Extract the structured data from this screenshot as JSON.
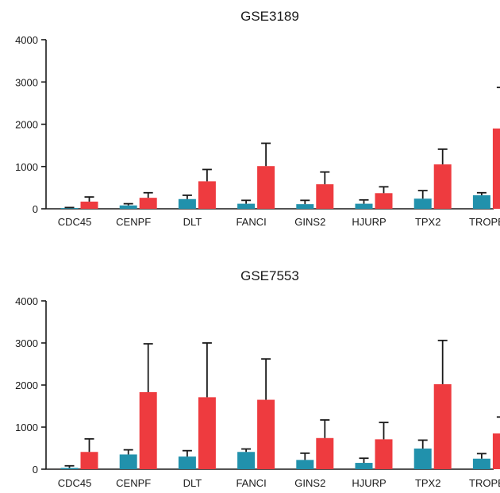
{
  "colors": {
    "normal": "#2191AC",
    "tumor": "#EE3B3F",
    "axis": "#1A1A1A"
  },
  "chart_data": [
    {
      "type": "bar",
      "title": "GSE3189",
      "xlabel": "",
      "ylabel": "",
      "ylim": [
        0,
        4000
      ],
      "yticks": [
        0,
        1000,
        2000,
        3000,
        4000
      ],
      "grid": false,
      "categories": [
        "CDC45",
        "CENPF",
        "DLT",
        "FANCI",
        "GINS2",
        "HJURP",
        "TPX2",
        "TROPB"
      ],
      "series": [
        {
          "values": [
            20,
            80,
            230,
            120,
            110,
            120,
            240,
            320
          ],
          "error": [
            10,
            40,
            90,
            80,
            90,
            90,
            190,
            60
          ],
          "color": "#2191AC"
        },
        {
          "values": [
            170,
            260,
            650,
            1010,
            580,
            370,
            1050,
            1900
          ],
          "error": [
            110,
            120,
            280,
            540,
            290,
            150,
            360,
            970
          ],
          "color": "#EE3B3F"
        }
      ]
    },
    {
      "type": "bar",
      "title": "GSE7553",
      "xlabel": "",
      "ylabel": "",
      "ylim": [
        0,
        4000
      ],
      "yticks": [
        0,
        1000,
        2000,
        3000,
        4000
      ],
      "grid": false,
      "categories": [
        "CDC45",
        "CENPF",
        "DLT",
        "FANCI",
        "GINS2",
        "HJURP",
        "TPX2",
        "TROPB"
      ],
      "series": [
        {
          "values": [
            30,
            350,
            300,
            410,
            220,
            150,
            490,
            250
          ],
          "error": [
            50,
            110,
            140,
            70,
            160,
            110,
            200,
            120
          ],
          "color": "#2191AC"
        },
        {
          "values": [
            410,
            1830,
            1710,
            1650,
            740,
            710,
            2020,
            850
          ],
          "error": [
            310,
            1150,
            1290,
            970,
            430,
            400,
            1040,
            390
          ],
          "color": "#EE3B3F"
        }
      ]
    }
  ]
}
